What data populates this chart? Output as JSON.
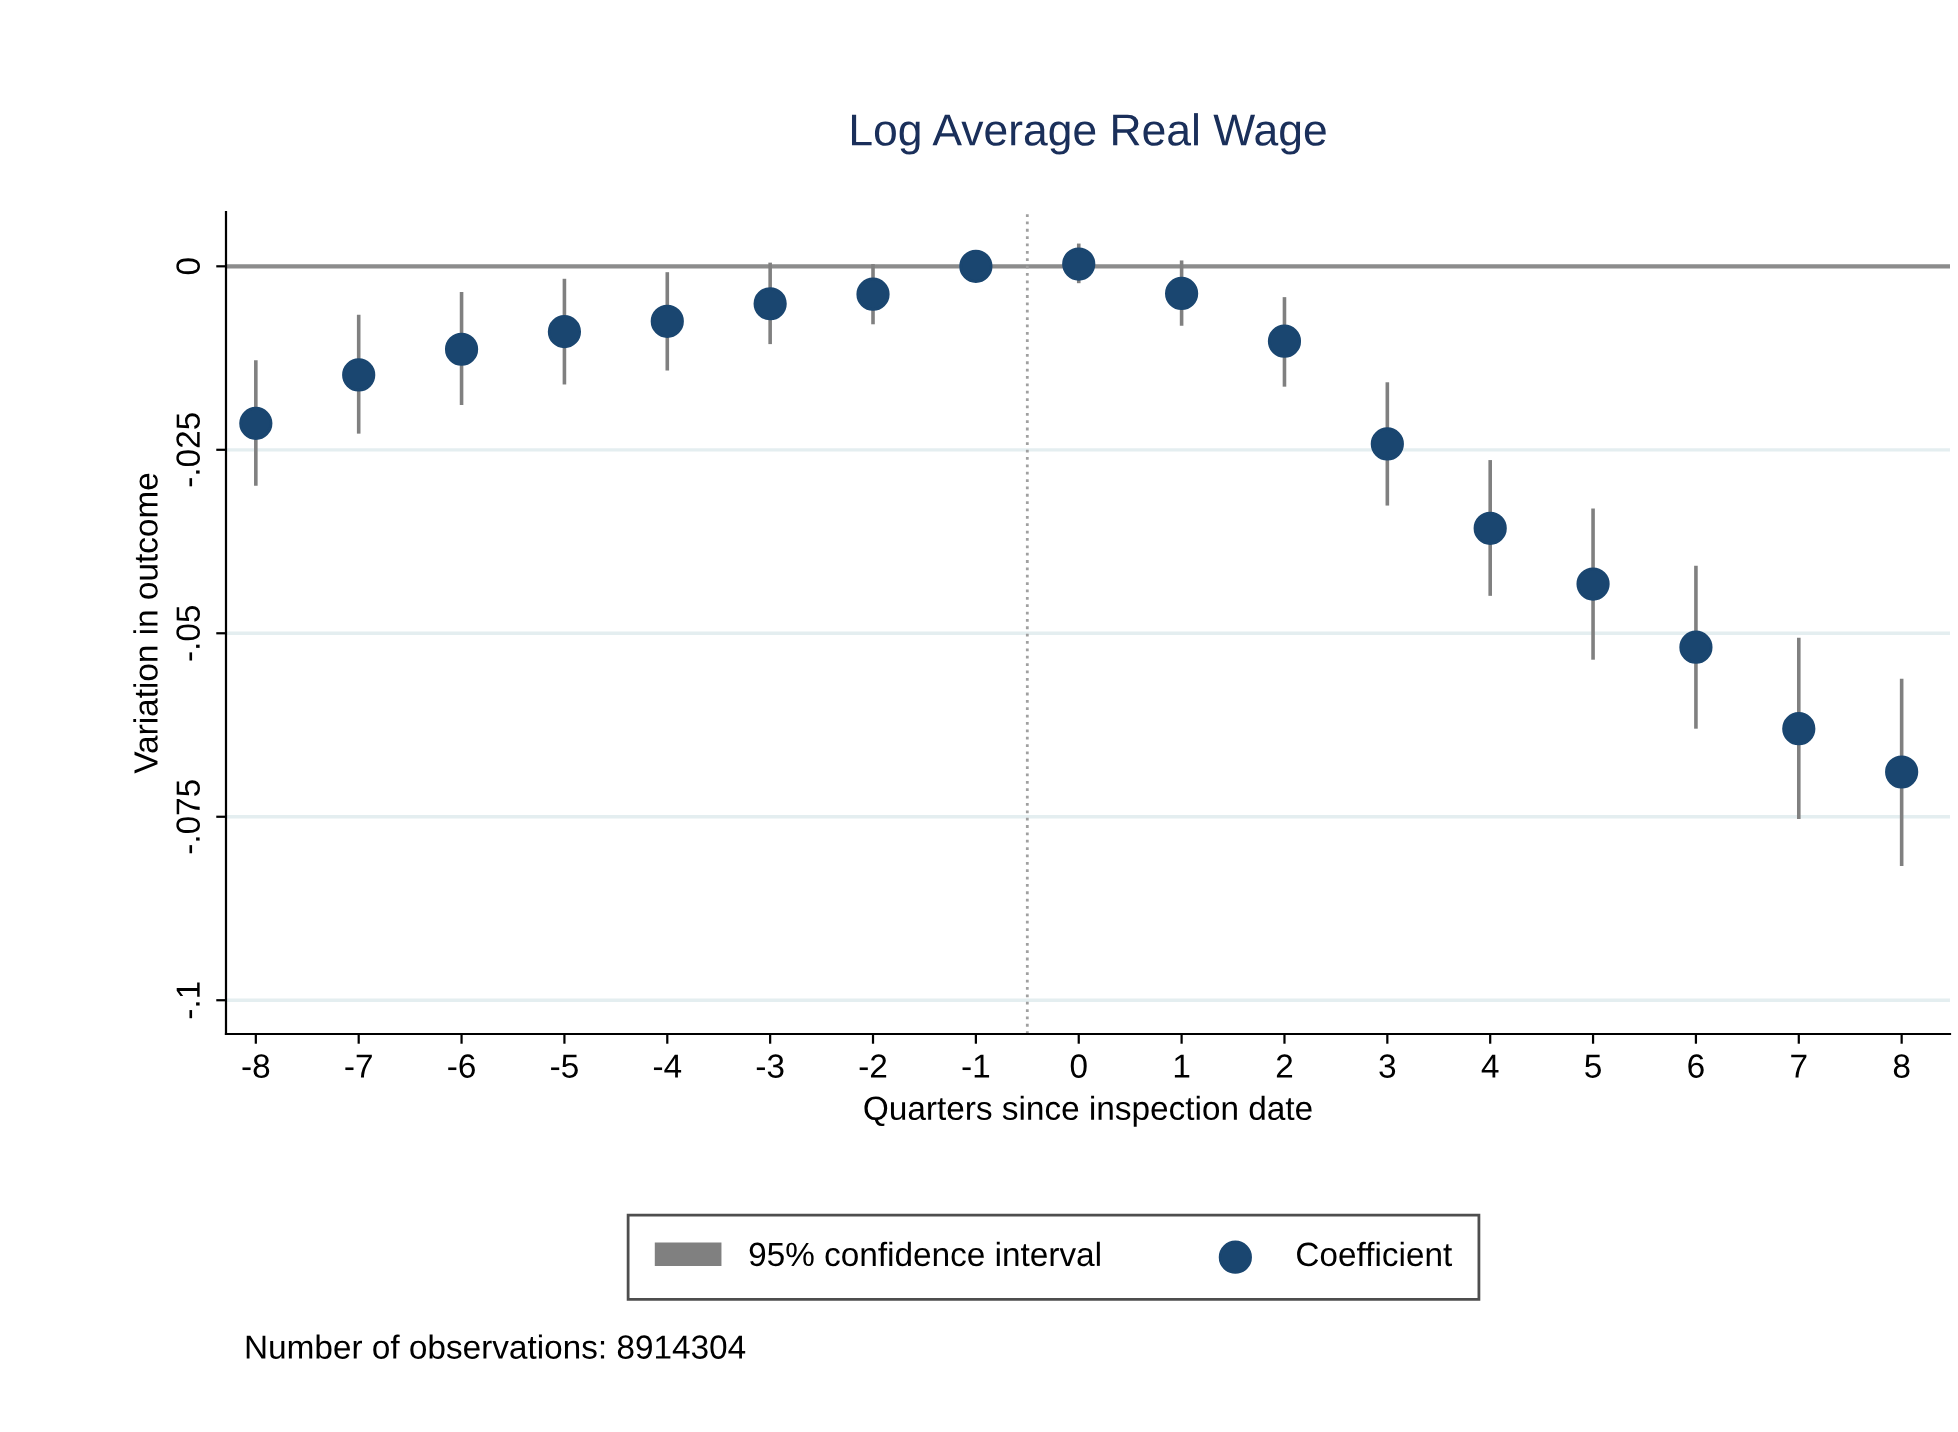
{
  "chart_data": {
    "type": "scatter",
    "title": "Log Average Real Wage",
    "xlabel": "Quarters since inspection date",
    "ylabel": "Variation in outcome",
    "annotations": [
      "Number of observations: 8914304"
    ],
    "x": [
      -8,
      -7,
      -6,
      -5,
      -4,
      -3,
      -2,
      -1,
      0,
      1,
      2,
      3,
      4,
      5,
      6,
      7,
      8
    ],
    "series": [
      {
        "name": "95% confidence interval",
        "type": "bar",
        "color": "#808080",
        "base": [
          -0.0299,
          -0.0228,
          -0.0189,
          -0.0161,
          -0.0142,
          -0.0106,
          -0.0079,
          null,
          -0.0023,
          -0.0081,
          -0.0164,
          -0.0326,
          -0.0449,
          -0.0536,
          -0.063,
          -0.0753,
          -0.0817
        ],
        "values": [
          0.0171,
          0.0162,
          0.0154,
          0.0144,
          0.0134,
          0.0111,
          0.0082,
          null,
          0.0054,
          0.0089,
          0.0122,
          0.0168,
          0.0185,
          0.0206,
          0.0222,
          0.0247,
          0.0255
        ]
      },
      {
        "name": "Coefficient",
        "color": "#1a4670",
        "marker": "circle",
        "values": [
          -0.0214,
          -0.0148,
          -0.0113,
          -0.0089,
          -0.0075,
          -0.0051,
          -0.0038,
          0,
          0.0003,
          -0.0037,
          -0.0102,
          -0.0242,
          -0.0357,
          -0.0433,
          -0.0519,
          -0.063,
          -0.0689
        ]
      }
    ],
    "xlim": [
      -8.29,
      8.47
    ],
    "ylim": [
      -0.1046,
      0.0074
    ],
    "xticks": [
      -8,
      -7,
      -6,
      -5,
      -4,
      -3,
      -2,
      -1,
      0,
      1,
      2,
      3,
      4,
      5,
      6,
      7,
      8
    ],
    "yticks": [
      {
        "value": 0,
        "label": "0"
      },
      {
        "value": -0.025,
        "label": "-.025"
      },
      {
        "value": -0.05,
        "label": "-.05"
      },
      {
        "value": -0.075,
        "label": "-.075"
      },
      {
        "value": -0.1,
        "label": "-.1"
      }
    ],
    "ref_lines": [
      {
        "axis": "y",
        "value": 0,
        "color": "#8c8c8c",
        "line_style": "solid"
      },
      {
        "axis": "x",
        "value": -0.5,
        "color": "#a0a0a0",
        "line_style": "dotted"
      }
    ],
    "grid": "y",
    "legend": "bottom"
  }
}
